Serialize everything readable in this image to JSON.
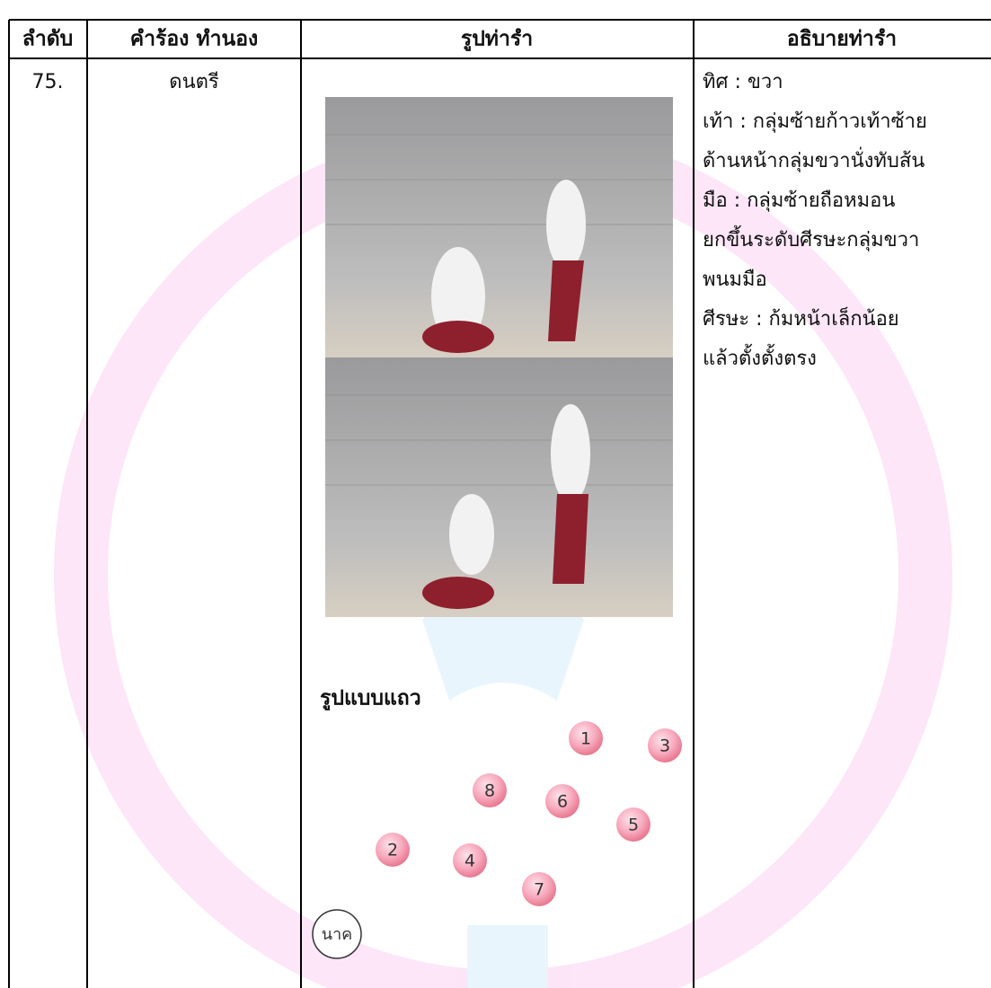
{
  "table": {
    "headers": [
      "ลำดับ",
      "คำร้อง ทำนอง",
      "รูปท่ารำ",
      "อธิบายท่ารำ"
    ],
    "rows": [
      [
        "75.",
        "ดนตรี"
      ]
    ]
  },
  "formation": {
    "title": "รูปแบบแถว",
    "dancers": [
      "1",
      "3",
      "8",
      "6",
      "5",
      "2",
      "4",
      "7"
    ],
    "leader": "นาค"
  },
  "description": [
    "ทิศ : ขวา",
    "เท้า : กลุ่มซ้ายก้าวเท้าซ้าย",
    "ด้านหน้ากลุ่มขวานั่งทับส้น",
    "มือ : กลุ่มซ้ายถือหมอน",
    "ยกขึ้นระดับศีรษะกลุ่มขวา",
    "พนมมือ",
    "ศีรษะ : ก้มหน้าเล็กน้อย",
    "แล้วตั้งตั้งตรง"
  ]
}
